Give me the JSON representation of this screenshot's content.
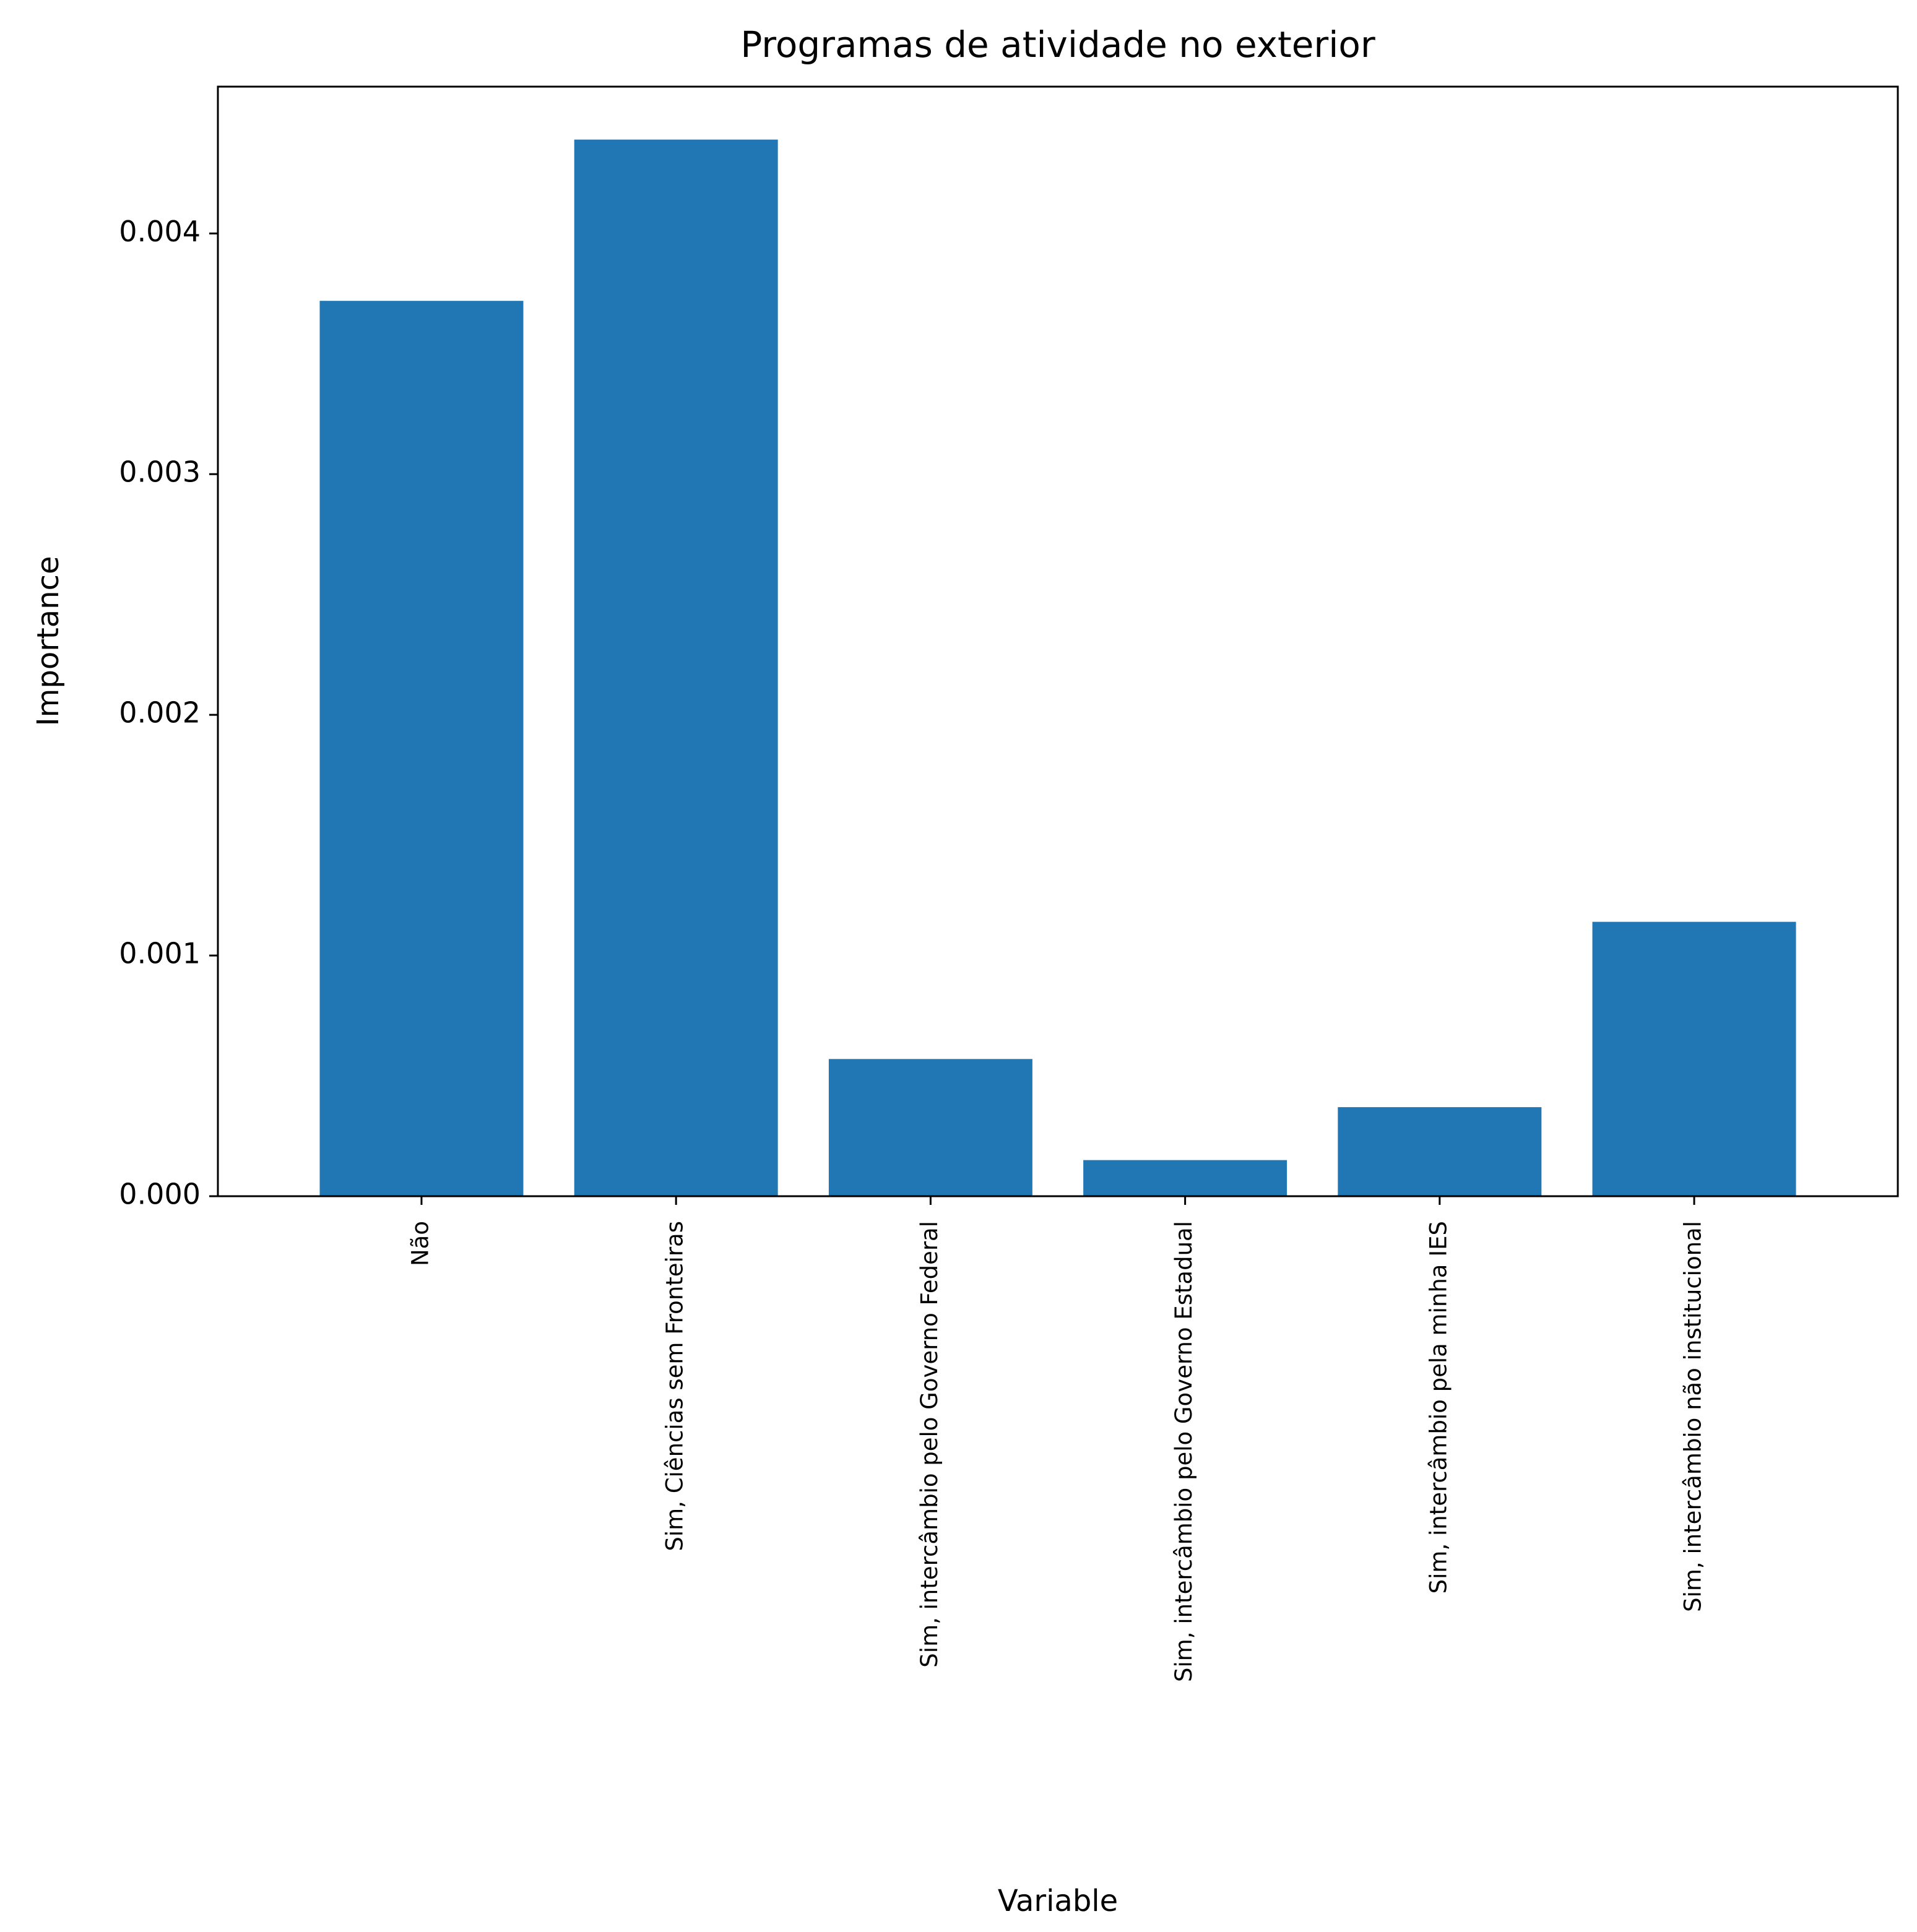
{
  "chart_data": {
    "type": "bar",
    "title": "Programas de atividade no exterior",
    "xlabel": "Variable",
    "ylabel": "Importance",
    "categories": [
      "Não",
      "Sim, Ciências sem Fronteiras",
      "Sim, intercâmbio pelo Governo Federal",
      "Sim, intercâmbio pelo Governo Estadual",
      "Sim, intercâmbio pela minha IES",
      "Sim, intercâmbio não institucional"
    ],
    "values": [
      0.00372,
      0.00439,
      0.00057,
      0.00015,
      0.00037,
      0.00114
    ],
    "ylim": [
      0,
      0.00461
    ],
    "yticks": [
      0.0,
      0.001,
      0.002,
      0.003,
      0.004
    ],
    "ytick_labels": [
      "0.000",
      "0.001",
      "0.002",
      "0.003",
      "0.004"
    ],
    "grid": false,
    "bar_color": "#2177b4"
  }
}
